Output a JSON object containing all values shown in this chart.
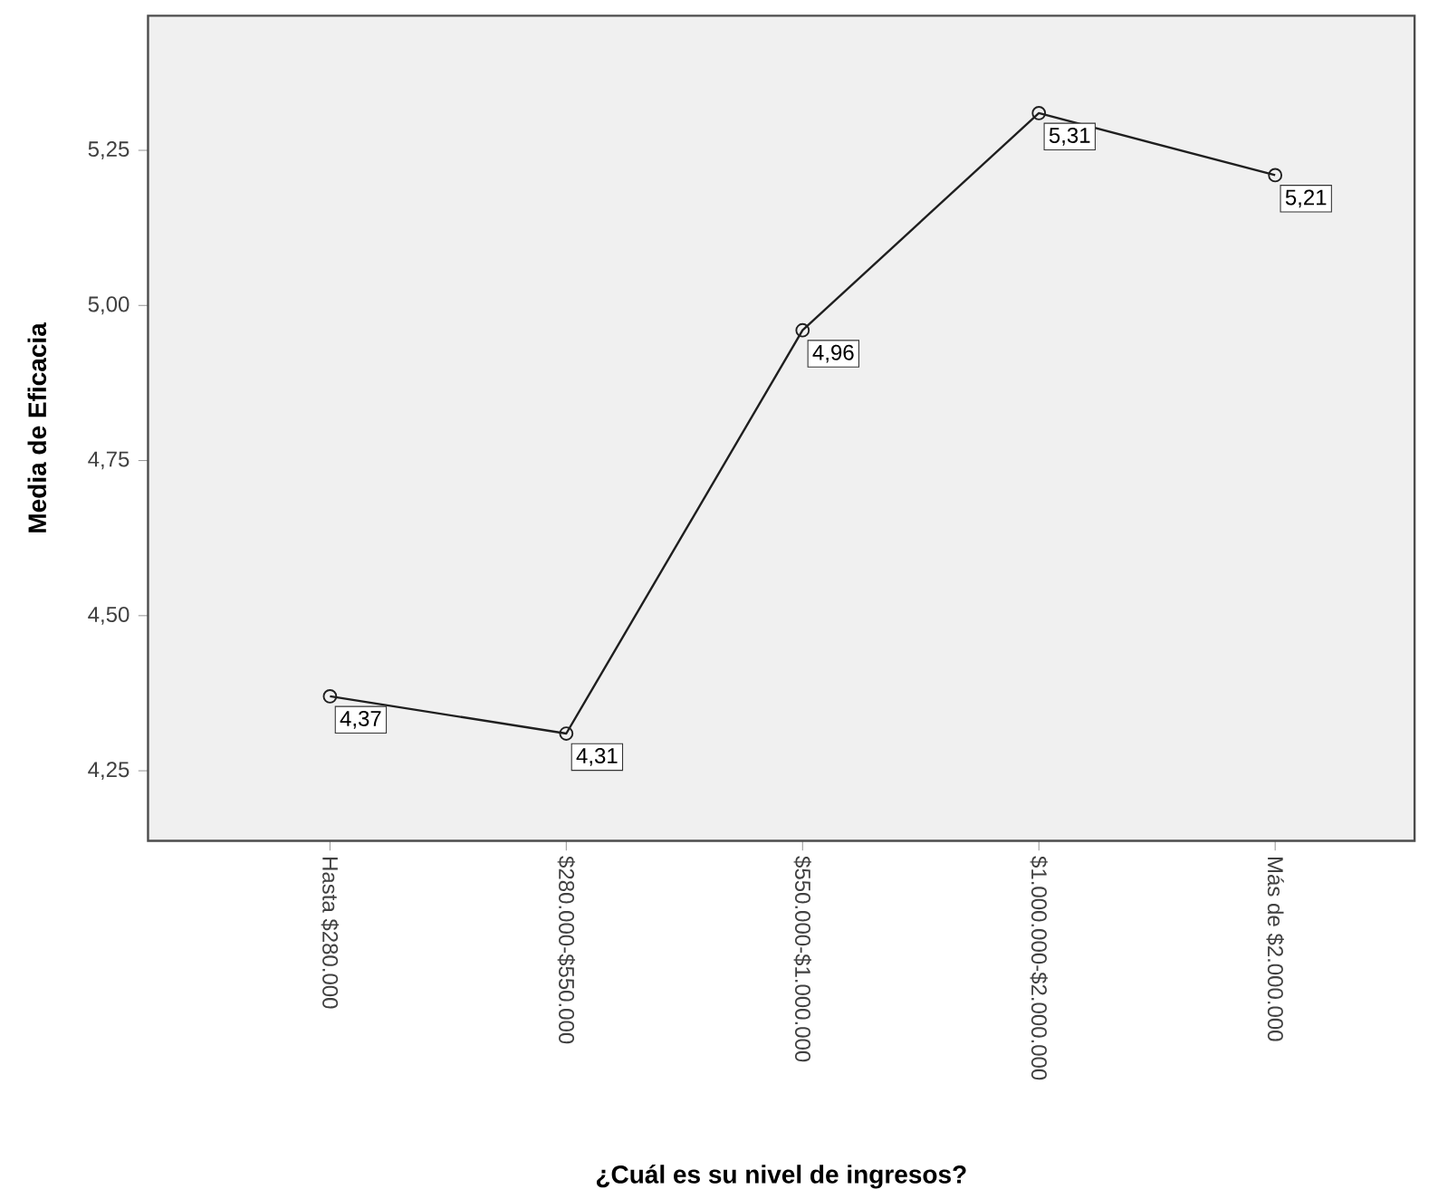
{
  "chart_data": {
    "type": "line",
    "xlabel": "¿Cuál es su nivel de ingresos?",
    "ylabel": "Media de Eficacia",
    "categories": [
      "Hasta $280.000",
      "$280.000-$550.000",
      "$550.000-$1.000.000",
      "$1.000.000-$2.000.000",
      "Más de $2.000.000"
    ],
    "values": [
      4.37,
      4.31,
      4.96,
      5.31,
      5.21
    ],
    "value_labels": [
      "4,37",
      "4,31",
      "4,96",
      "5,31",
      "5,21"
    ],
    "color": "#1f1f1f",
    "marker": "circle",
    "ylim": [
      4.137,
      5.467
    ],
    "yticks": [
      {
        "value": 4.25,
        "label": "4,25"
      },
      {
        "value": 4.5,
        "label": "4,50"
      },
      {
        "value": 4.75,
        "label": "4,75"
      },
      {
        "value": 5.0,
        "label": "5,00"
      },
      {
        "value": 5.25,
        "label": "5,25"
      }
    ],
    "line_style": "solid"
  }
}
